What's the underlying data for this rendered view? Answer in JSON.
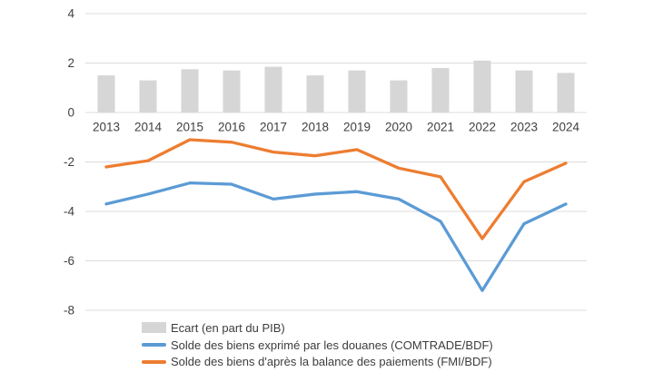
{
  "chart_data": {
    "type": "combo",
    "title": "",
    "xlabel": "",
    "ylabel": "",
    "categories": [
      "2013",
      "2014",
      "2015",
      "2016",
      "2017",
      "2018",
      "2019",
      "2020",
      "2021",
      "2022",
      "2023",
      "2024"
    ],
    "series": [
      {
        "name": "Ecart (en part du PIB)",
        "type": "bar",
        "color": "#D6D6D6",
        "values": [
          1.5,
          1.3,
          1.75,
          1.7,
          1.85,
          1.5,
          1.7,
          1.3,
          1.8,
          2.1,
          1.7,
          1.6
        ]
      },
      {
        "name": "Solde des biens exprimé par les douanes (COMTRADE/BDF)",
        "type": "line",
        "color": "#5B9BD5",
        "values": [
          -3.7,
          -3.3,
          -2.85,
          -2.9,
          -3.5,
          -3.3,
          -3.2,
          -3.5,
          -4.4,
          -7.2,
          -4.5,
          -3.7
        ]
      },
      {
        "name": "Solde des biens d'après la balance des paiements (FMI/BDF)",
        "type": "line",
        "color": "#ED7D31",
        "values": [
          -2.2,
          -1.95,
          -1.1,
          -1.2,
          -1.6,
          -1.75,
          -1.5,
          -2.25,
          -2.6,
          -5.1,
          -2.8,
          -2.05
        ]
      }
    ],
    "ylim": [
      -8,
      4
    ],
    "yticks": [
      4,
      2,
      0,
      -2,
      -4,
      -6,
      -8
    ],
    "grid": true,
    "gridline_color": "#DCDCDC",
    "axis_text_color": "#404040",
    "legend_position": "bottom-left"
  }
}
